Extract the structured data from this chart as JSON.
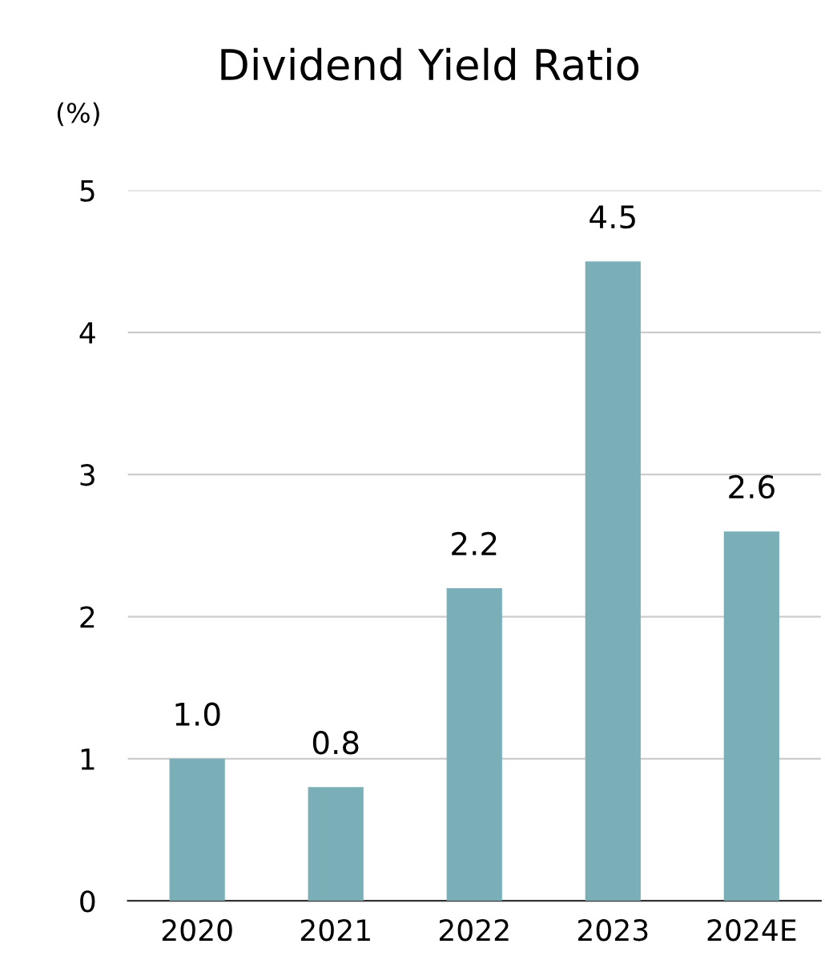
{
  "chart_data": {
    "type": "bar",
    "title": "Dividend Yield Ratio",
    "ylabel": "(%)",
    "categories": [
      "2020",
      "2021",
      "2022",
      "2023",
      "2024E"
    ],
    "values": [
      1.0,
      0.8,
      2.2,
      4.5,
      2.6
    ],
    "value_labels": [
      "1.0",
      "0.8",
      "2.2",
      "4.5",
      "2.6"
    ],
    "color": "#7aafb8",
    "ylim": [
      0,
      5
    ],
    "yticks": [
      0,
      1,
      2,
      3,
      4,
      5
    ],
    "grid": "y",
    "legend": false
  }
}
